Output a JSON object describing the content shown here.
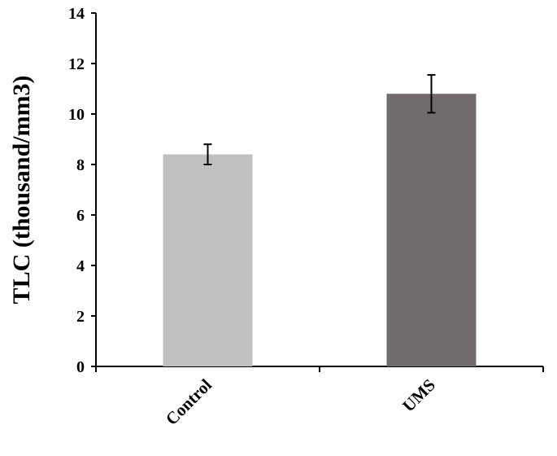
{
  "chart_data": {
    "type": "bar",
    "categories": [
      "Control",
      "UMS"
    ],
    "values": [
      8.4,
      10.8
    ],
    "errors": [
      0.4,
      0.75
    ],
    "bar_colors": [
      "#c0c0c0",
      "#716b6b"
    ],
    "title": "",
    "xlabel": "",
    "ylabel": "TLC (thousand/mm3)",
    "ylim": [
      0,
      14
    ],
    "yticks": [
      0,
      2,
      4,
      6,
      8,
      10,
      12,
      14
    ],
    "grid": false,
    "legend": "none"
  }
}
